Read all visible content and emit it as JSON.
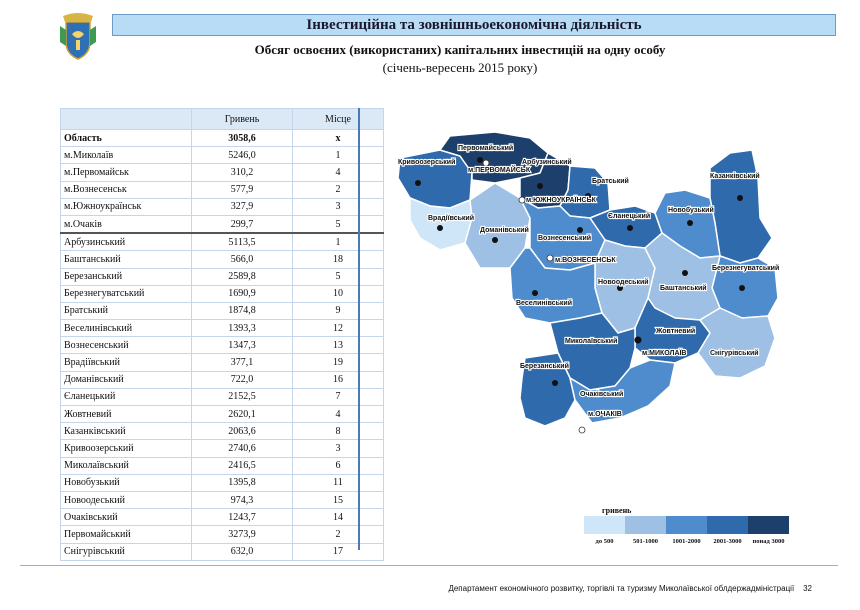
{
  "header": {
    "title": "Інвестиційна та зовнішньоекономічна діяльність",
    "subtitle": "Обсяг освоєних (використаних) капітальних інвестицій на одну особу",
    "period": "(січень-вересень 2015 року)"
  },
  "table": {
    "col_value": "Гривень",
    "col_rank": "Місце",
    "region_row": {
      "name": "Область",
      "value": "3058,6",
      "rank": "х"
    },
    "cities": [
      {
        "name": "м.Миколаїв",
        "value": "5246,0",
        "rank": "1"
      },
      {
        "name": "м.Первомайськ",
        "value": "310,2",
        "rank": "4"
      },
      {
        "name": "м.Вознесенськ",
        "value": "577,9",
        "rank": "2"
      },
      {
        "name": "м.Южноукраїнськ",
        "value": "327,9",
        "rank": "3"
      },
      {
        "name": "м.Очаків",
        "value": "299,7",
        "rank": "5"
      }
    ],
    "districts": [
      {
        "name": "Арбузинський",
        "value": "5113,5",
        "rank": "1"
      },
      {
        "name": "Баштанський",
        "value": "566,0",
        "rank": "18"
      },
      {
        "name": "Березанський",
        "value": "2589,8",
        "rank": "5"
      },
      {
        "name": "Березнегуватський",
        "value": "1690,9",
        "rank": "10"
      },
      {
        "name": "Братський",
        "value": "1874,8",
        "rank": "9"
      },
      {
        "name": "Веселинівський",
        "value": "1393,3",
        "rank": "12"
      },
      {
        "name": "Вознесенський",
        "value": "1347,3",
        "rank": "13"
      },
      {
        "name": "Врадіївський",
        "value": "377,1",
        "rank": "19"
      },
      {
        "name": "Доманівський",
        "value": "722,0",
        "rank": "16"
      },
      {
        "name": "Єланецький",
        "value": "2152,5",
        "rank": "7"
      },
      {
        "name": "Жовтневий",
        "value": "2620,1",
        "rank": "4"
      },
      {
        "name": "Казанківський",
        "value": "2063,6",
        "rank": "8"
      },
      {
        "name": "Кривоозерський",
        "value": "2740,6",
        "rank": "3"
      },
      {
        "name": "Миколаївський",
        "value": "2416,5",
        "rank": "6"
      },
      {
        "name": "Новобузький",
        "value": "1395,8",
        "rank": "11"
      },
      {
        "name": "Новоодеський",
        "value": "974,3",
        "rank": "15"
      },
      {
        "name": "Очаківський",
        "value": "1243,7",
        "rank": "14"
      },
      {
        "name": "Первомайський",
        "value": "3273,9",
        "rank": "2"
      },
      {
        "name": "Снігурівський",
        "value": "632,0",
        "rank": "17"
      }
    ]
  },
  "map": {
    "city_labels": {
      "pervomaisk": "м.ПЕРВОМАЙСЬК",
      "yuzhnoukrainsk": "м.ЮЖНОУКРАЇНСЬК",
      "voznesensk": "м.ВОЗНЕСЕНСЬК",
      "mykolaiv": "м.МИКОЛАЇВ",
      "ochakiv": "м.ОЧАКІВ"
    },
    "district_labels": {
      "kryvoozerskyi": "Кривоозерський",
      "pervomaiskyi": "Первомайський",
      "arbuzynskyi": "Арбузинський",
      "bratskyi": "Братський",
      "kazankivskyi": "Казанківський",
      "vradiivskyi": "Врадіївський",
      "domanivskyi": "Доманівський",
      "yelanetskyi": "Єланецький",
      "novobuzkyi": "Новобузький",
      "voznesenskyi": "Вознесенський",
      "bereznehuvatskyi": "Березнегуватський",
      "novoodeskyi": "Новоодеський",
      "bashtanskyi": "Баштанський",
      "veselynivskyi": "Веселинівський",
      "zhovtnevyi": "Жовтневий",
      "mykolaivskyi": "Миколаївський",
      "snihurivskyi": "Снігурівський",
      "berezanskyi": "Березанський",
      "ochakivskyi": "Очаківський"
    },
    "colors": {
      "c1": "#cfe6f8",
      "c2": "#9dc0e4",
      "c3": "#4f8ccd",
      "c4": "#2e6aac",
      "c5": "#1d3f6b"
    }
  },
  "legend": {
    "title": "гривень",
    "labels": [
      "до 500",
      "501-1000",
      "1001-2000",
      "2001-3000",
      "понад 3000"
    ],
    "colors": [
      "#cfe6f8",
      "#9dc0e4",
      "#4f8ccd",
      "#2e6aac",
      "#1d3f6b"
    ]
  },
  "footer": {
    "text": "Департамент економічного розвитку, торгівлі та туризму  Миколаївської облдержадміністрації",
    "page": "32"
  }
}
